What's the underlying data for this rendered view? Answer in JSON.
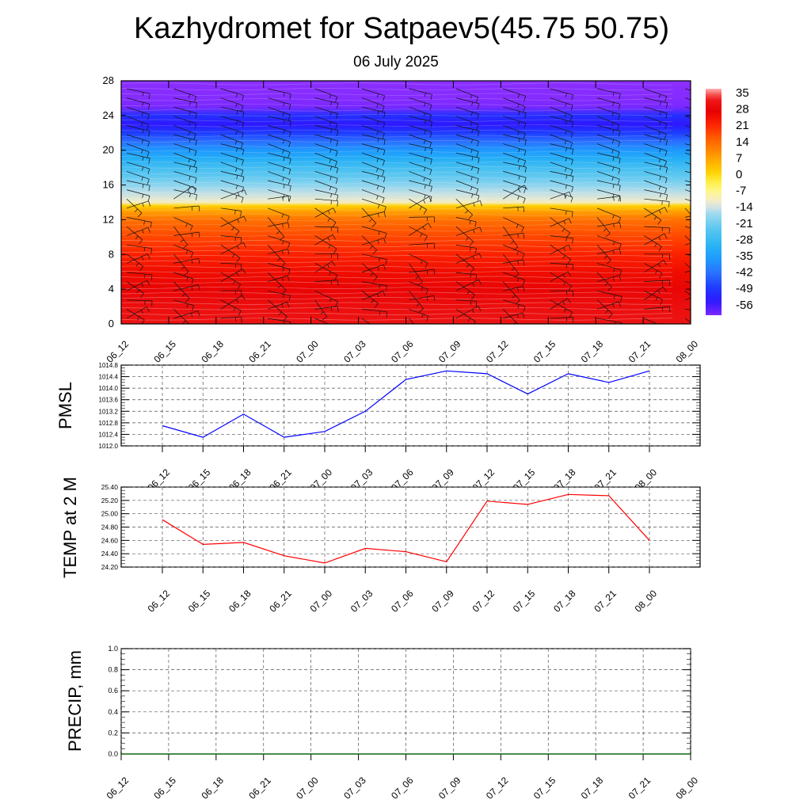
{
  "title": "Kazhydromet for Satpaev5(45.75 50.75)",
  "subtitle": "06 July 2025",
  "time_labels": [
    "06_12",
    "06_15",
    "06_18",
    "06_21",
    "07_00",
    "07_03",
    "07_06",
    "07_09",
    "07_12",
    "07_15",
    "07_18",
    "07_21",
    "08_00"
  ],
  "chart_data": [
    {
      "type": "heatmap",
      "ylim": [
        0,
        28
      ],
      "yticks": [
        0,
        4,
        8,
        12,
        16,
        20,
        24,
        28
      ],
      "x": [
        "06_12",
        "06_15",
        "06_18",
        "06_21",
        "07_00",
        "07_03",
        "07_06",
        "07_09",
        "07_12",
        "07_15",
        "07_18",
        "07_21",
        "08_00"
      ],
      "colorbar_labels": [
        "35",
        "28",
        "21",
        "14",
        "7",
        "0",
        "-7",
        "-14",
        "-21",
        "-28",
        "-35",
        "-42",
        "-49",
        "-56"
      ],
      "profile": {
        "levels": [
          0,
          2,
          4,
          6,
          8,
          10,
          12,
          13,
          13.6,
          14,
          15,
          16,
          17,
          18,
          19,
          20,
          21,
          22,
          23,
          24,
          25,
          26,
          28
        ],
        "temperature": [
          30,
          29,
          27,
          24,
          21,
          17,
          12,
          6,
          0,
          -12,
          -16,
          -20,
          -24,
          -28,
          -33,
          -38,
          -44,
          -50,
          -56,
          -52,
          -62,
          -66,
          -68
        ]
      },
      "overlay": "wind barbs"
    },
    {
      "type": "line",
      "ylabel": "PMSL",
      "ylim": [
        1012.0,
        1014.8
      ],
      "yticks": [
        "1012.0",
        "1012.4",
        "1012.8",
        "1013.2",
        "1013.6",
        "1014.0",
        "1014.4",
        "1014.8"
      ],
      "x": [
        "06_12",
        "06_15",
        "06_18",
        "06_21",
        "07_00",
        "07_03",
        "07_06",
        "07_09",
        "07_12",
        "07_15",
        "07_18",
        "07_21",
        "08_00"
      ],
      "series": [
        {
          "color": "#0000ff",
          "values": [
            1012.7,
            1012.3,
            1013.1,
            1012.3,
            1012.5,
            1013.2,
            1014.3,
            1014.6,
            1014.5,
            1013.8,
            1014.5,
            1014.2,
            1014.6
          ]
        }
      ]
    },
    {
      "type": "line",
      "ylabel": "TEMP at 2 M",
      "ylim": [
        24.2,
        25.4
      ],
      "yticks": [
        "24.20",
        "24.40",
        "24.60",
        "24.80",
        "25.00",
        "25.20",
        "25.40"
      ],
      "x": [
        "06_12",
        "06_15",
        "06_18",
        "06_21",
        "07_00",
        "07_03",
        "07_06",
        "07_09",
        "07_12",
        "07_15",
        "07_18",
        "07_21",
        "08_00"
      ],
      "series": [
        {
          "color": "#ff0000",
          "values": [
            24.91,
            24.54,
            24.57,
            24.37,
            24.26,
            24.48,
            24.43,
            24.28,
            25.19,
            25.14,
            25.29,
            25.27,
            24.6
          ]
        }
      ]
    },
    {
      "type": "line",
      "ylabel": "PRECIP, mm",
      "ylim": [
        0.0,
        1.0
      ],
      "yticks": [
        "0.0",
        "0.2",
        "0.4",
        "0.6",
        "0.8",
        "1.0"
      ],
      "x": [
        "06_12",
        "06_15",
        "06_18",
        "06_21",
        "07_00",
        "07_03",
        "07_06",
        "07_09",
        "07_12",
        "07_15",
        "07_18",
        "07_21",
        "08_00"
      ],
      "series": [
        {
          "color": "#006400",
          "values": [
            0,
            0,
            0,
            0,
            0,
            0,
            0,
            0,
            0,
            0,
            0,
            0,
            0
          ]
        }
      ]
    }
  ]
}
